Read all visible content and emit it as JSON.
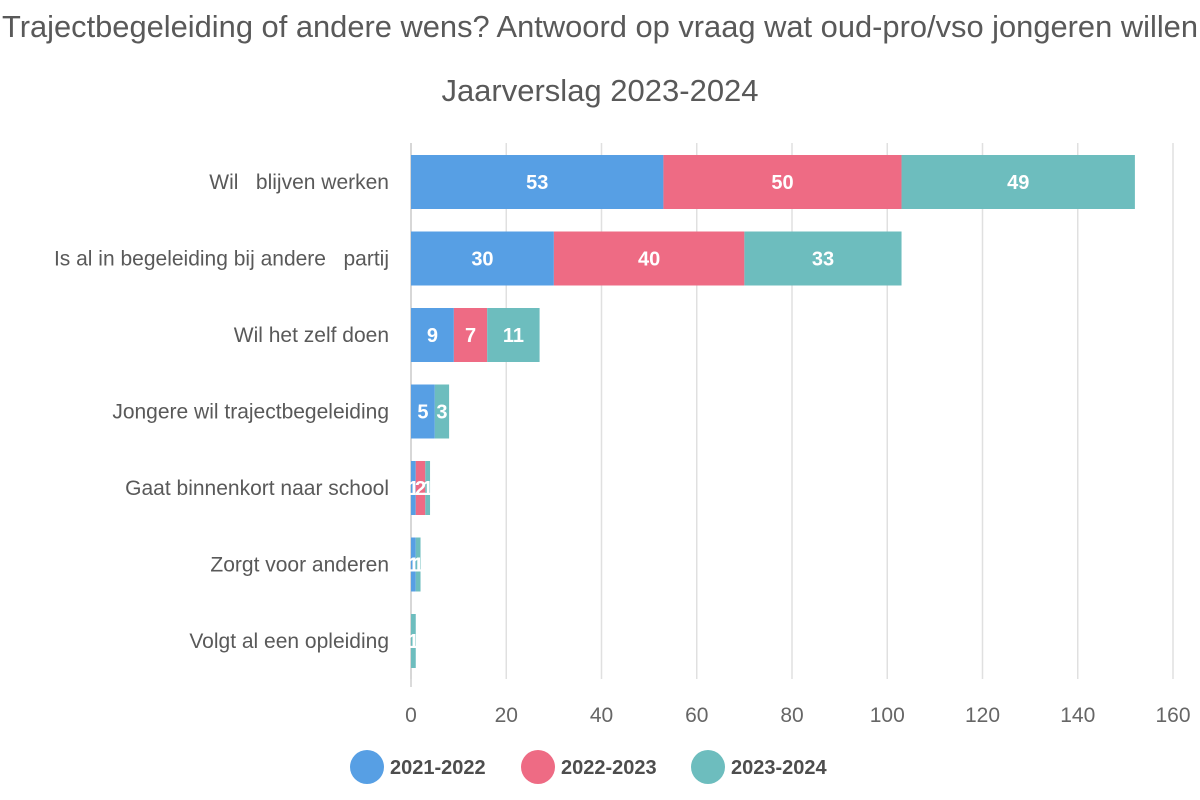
{
  "chart_data": {
    "type": "bar",
    "orientation": "horizontal",
    "stacked": true,
    "title": "Trajectbegeleiding of andere wens? Antwoord op vraag wat oud-pro/vso jongeren willen",
    "subtitle": "Jaarverslag 2023-2024",
    "categories": [
      "Wil   blijven werken",
      "Is al in begeleiding bij andere   partij",
      "Wil het zelf doen",
      "Jongere wil trajectbegeleiding",
      "Gaat binnenkort naar school",
      "Zorgt voor anderen",
      "Volgt al een opleiding"
    ],
    "series": [
      {
        "name": "2021-2022",
        "color": "#579fe4",
        "values": [
          53,
          30,
          9,
          5,
          1,
          1,
          0
        ]
      },
      {
        "name": "2022-2023",
        "color": "#ee6b84",
        "values": [
          50,
          40,
          7,
          0,
          2,
          0,
          0
        ]
      },
      {
        "name": "2023-2024",
        "color": "#6dbdbe",
        "values": [
          49,
          33,
          11,
          3,
          1,
          1,
          1
        ]
      }
    ],
    "xlim": [
      0,
      160
    ],
    "xticks": [
      "0",
      "20",
      "40",
      "60",
      "80",
      "100",
      "120",
      "140",
      "160"
    ],
    "grid": true,
    "legend": "bottom-center"
  }
}
